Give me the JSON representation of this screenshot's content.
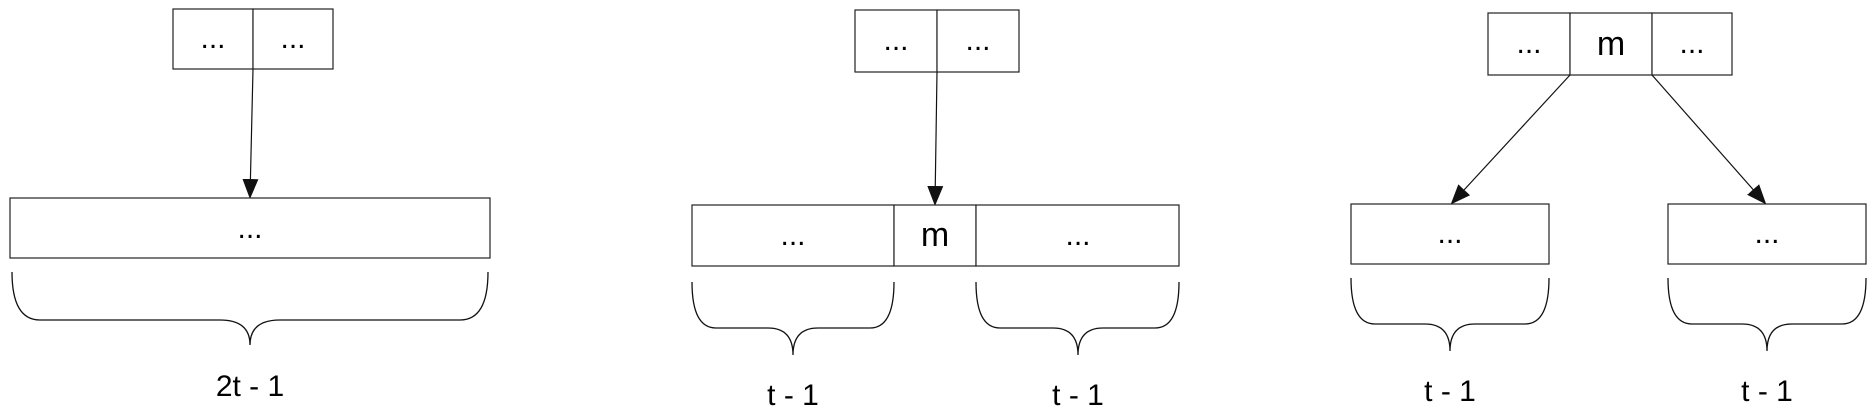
{
  "diagram": {
    "panel_left": {
      "parent_cells": [
        "...",
        "..."
      ],
      "child_cells": [
        "..."
      ],
      "brace_label": "2t - 1"
    },
    "panel_middle": {
      "parent_cells": [
        "...",
        "..."
      ],
      "child_cells": [
        "...",
        "m",
        "..."
      ],
      "brace_left_label": "t - 1",
      "brace_right_label": "t - 1"
    },
    "panel_right": {
      "parent_cells": [
        "...",
        "m",
        "..."
      ],
      "left_child_cells": [
        "..."
      ],
      "right_child_cells": [
        "..."
      ],
      "brace_left_label": "t - 1",
      "brace_right_label": "t - 1"
    }
  }
}
